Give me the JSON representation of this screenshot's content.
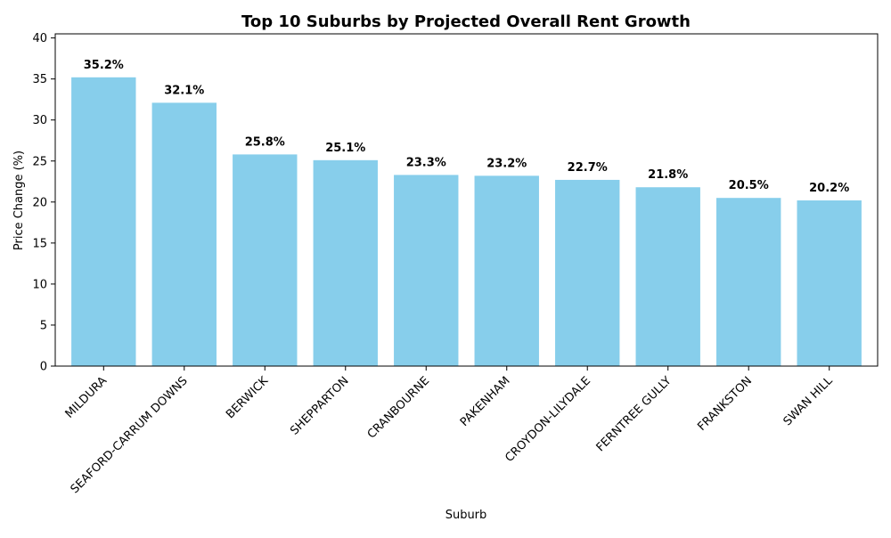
{
  "chart_data": {
    "type": "bar",
    "title": "Top 10 Suburbs by Projected Overall Rent Growth",
    "xlabel": "Suburb",
    "ylabel": "Price Change (%)",
    "categories": [
      "MILDURA",
      "SEAFORD-CARRUM DOWNS",
      "BERWICK",
      "SHEPPARTON",
      "CRANBOURNE",
      "PAKENHAM",
      "CROYDON-LILYDALE",
      "FERNTREE GULLY",
      "FRANKSTON",
      "SWAN HILL"
    ],
    "values": [
      35.2,
      32.1,
      25.8,
      25.1,
      23.3,
      23.2,
      22.7,
      21.8,
      20.5,
      20.2
    ],
    "data_labels": [
      "35.2%",
      "32.1%",
      "25.8%",
      "25.1%",
      "23.3%",
      "23.2%",
      "22.7%",
      "21.8%",
      "20.5%",
      "20.2%"
    ],
    "ylim": [
      0,
      40.5
    ],
    "yticks": [
      0,
      5,
      10,
      15,
      20,
      25,
      30,
      35,
      40
    ],
    "grid": false,
    "legend": "none",
    "bar_color": "#87CEEB"
  }
}
